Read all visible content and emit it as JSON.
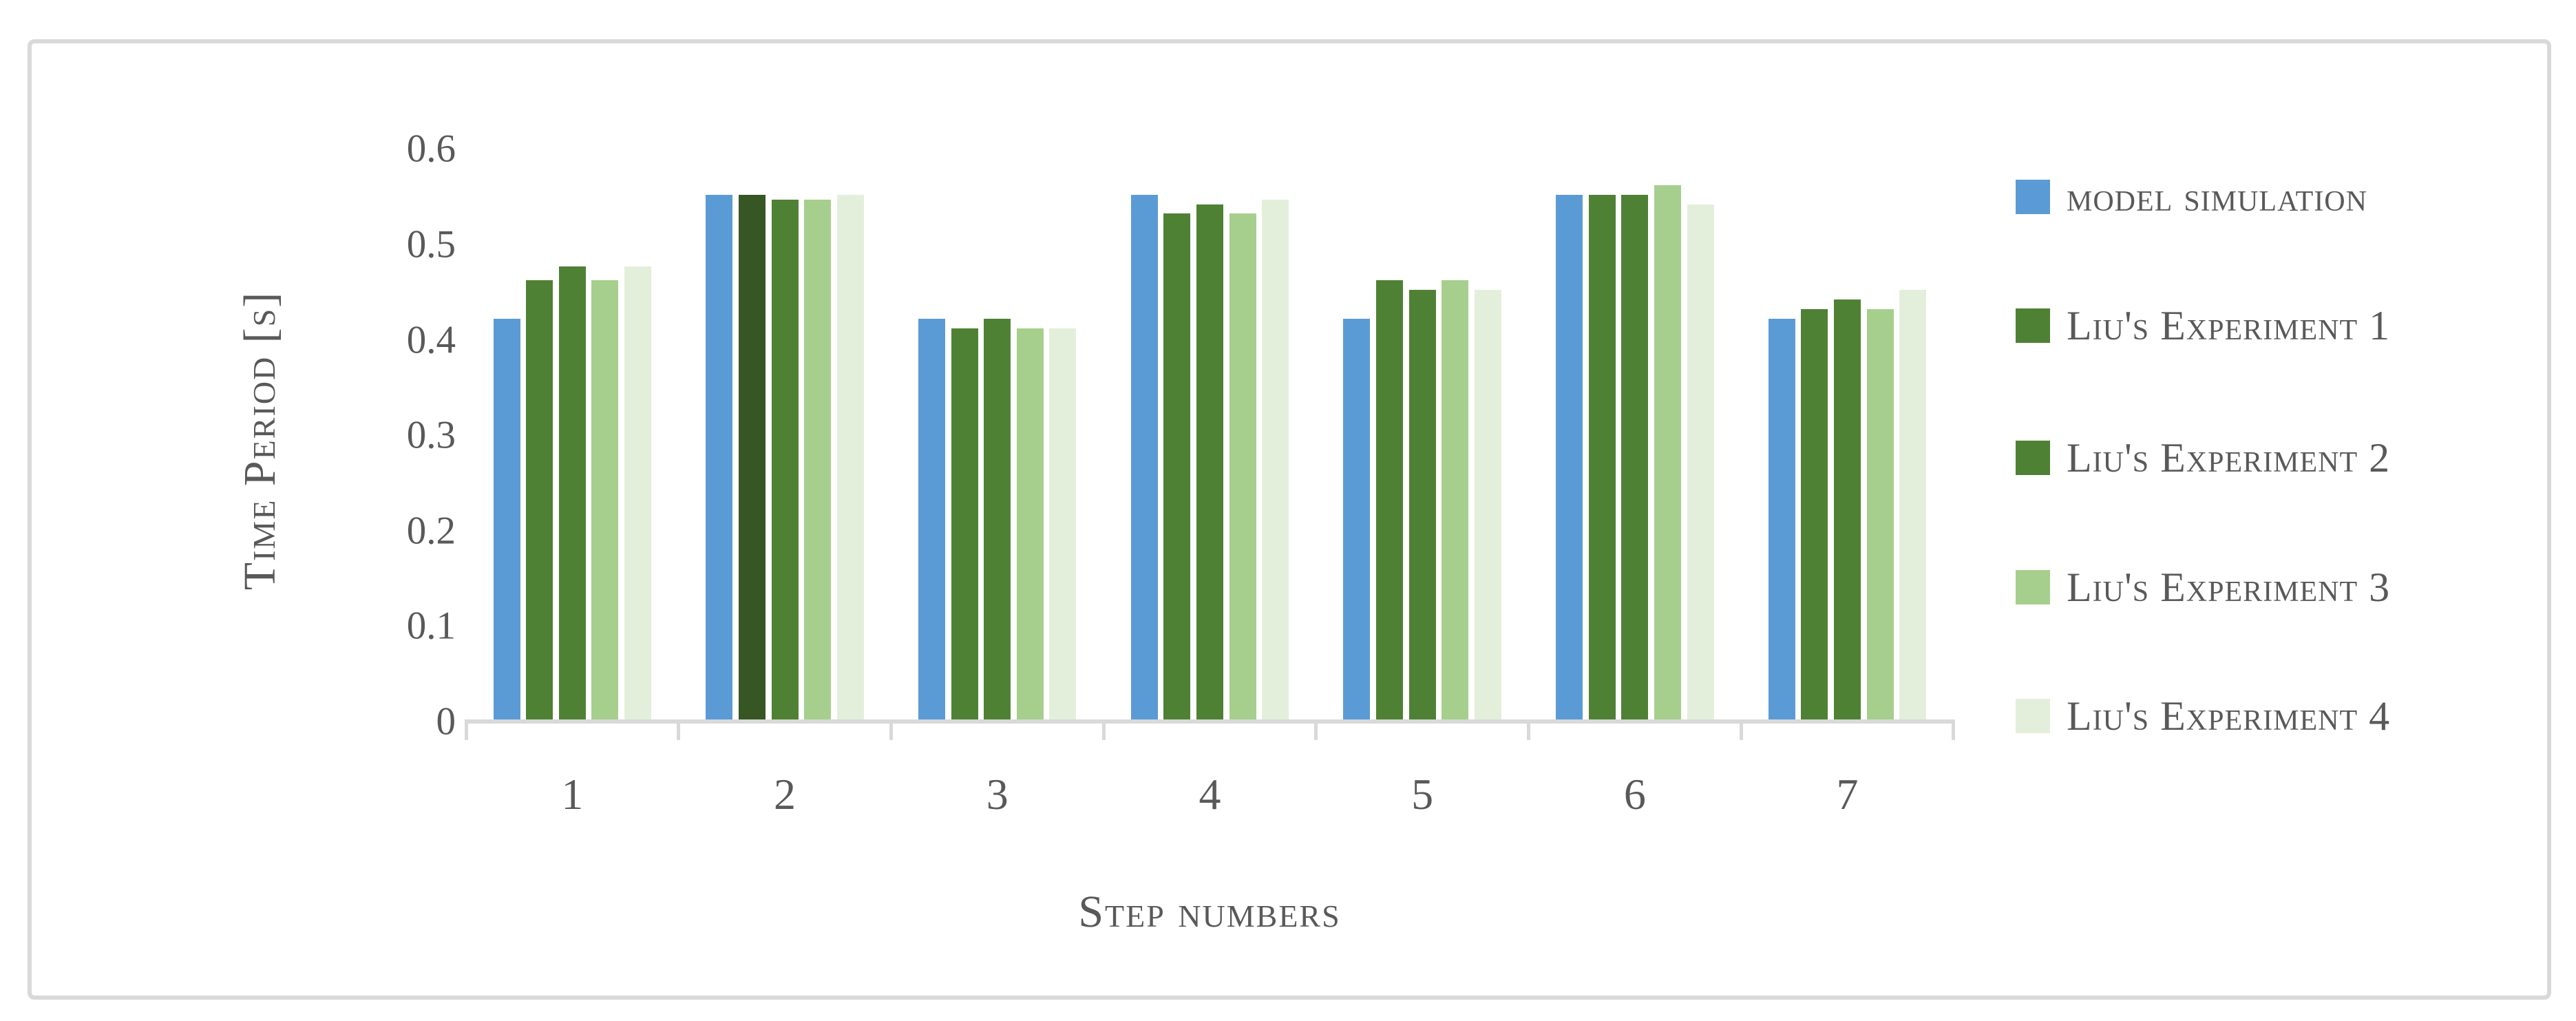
{
  "chart_data": {
    "type": "bar",
    "title": "",
    "xlabel": "Step numbers",
    "ylabel": "Time Period [s]",
    "categories": [
      "1",
      "2",
      "3",
      "4",
      "5",
      "6",
      "7"
    ],
    "series": [
      {
        "name": "model simulation",
        "color": "#5B9BD5",
        "values": [
          0.42,
          0.55,
          0.42,
          0.55,
          0.42,
          0.55,
          0.42
        ]
      },
      {
        "name": "Liu's Experiment 1",
        "color": "#4E8133",
        "values": [
          0.46,
          0.55,
          0.41,
          0.53,
          0.46,
          0.55,
          0.43
        ]
      },
      {
        "name": "Liu's Experiment 2",
        "color": "#4E8133",
        "values": [
          0.475,
          0.545,
          0.42,
          0.54,
          0.45,
          0.55,
          0.44
        ]
      },
      {
        "name": "Liu's Experiment 3",
        "color": "#A6CF8D",
        "values": [
          0.46,
          0.545,
          0.41,
          0.53,
          0.46,
          0.56,
          0.43
        ]
      },
      {
        "name": "Liu's Experiment 4",
        "color": "#E3EFDB",
        "values": [
          0.475,
          0.55,
          0.41,
          0.545,
          0.45,
          0.54,
          0.45
        ]
      }
    ],
    "point_color_overrides": [
      {
        "series_index": 1,
        "category_index": 1,
        "color": "#365623"
      }
    ],
    "y_ticks": [
      "0",
      "0.1",
      "0.2",
      "0.3",
      "0.4",
      "0.5",
      "0.6"
    ],
    "ylim": [
      0,
      0.6
    ],
    "grid": false,
    "legend_position": "right"
  },
  "colors": {
    "frame_border": "#D9D9D9",
    "axis_line": "#D9D9D9",
    "text": "#595959",
    "background": "#FFFFFF"
  }
}
